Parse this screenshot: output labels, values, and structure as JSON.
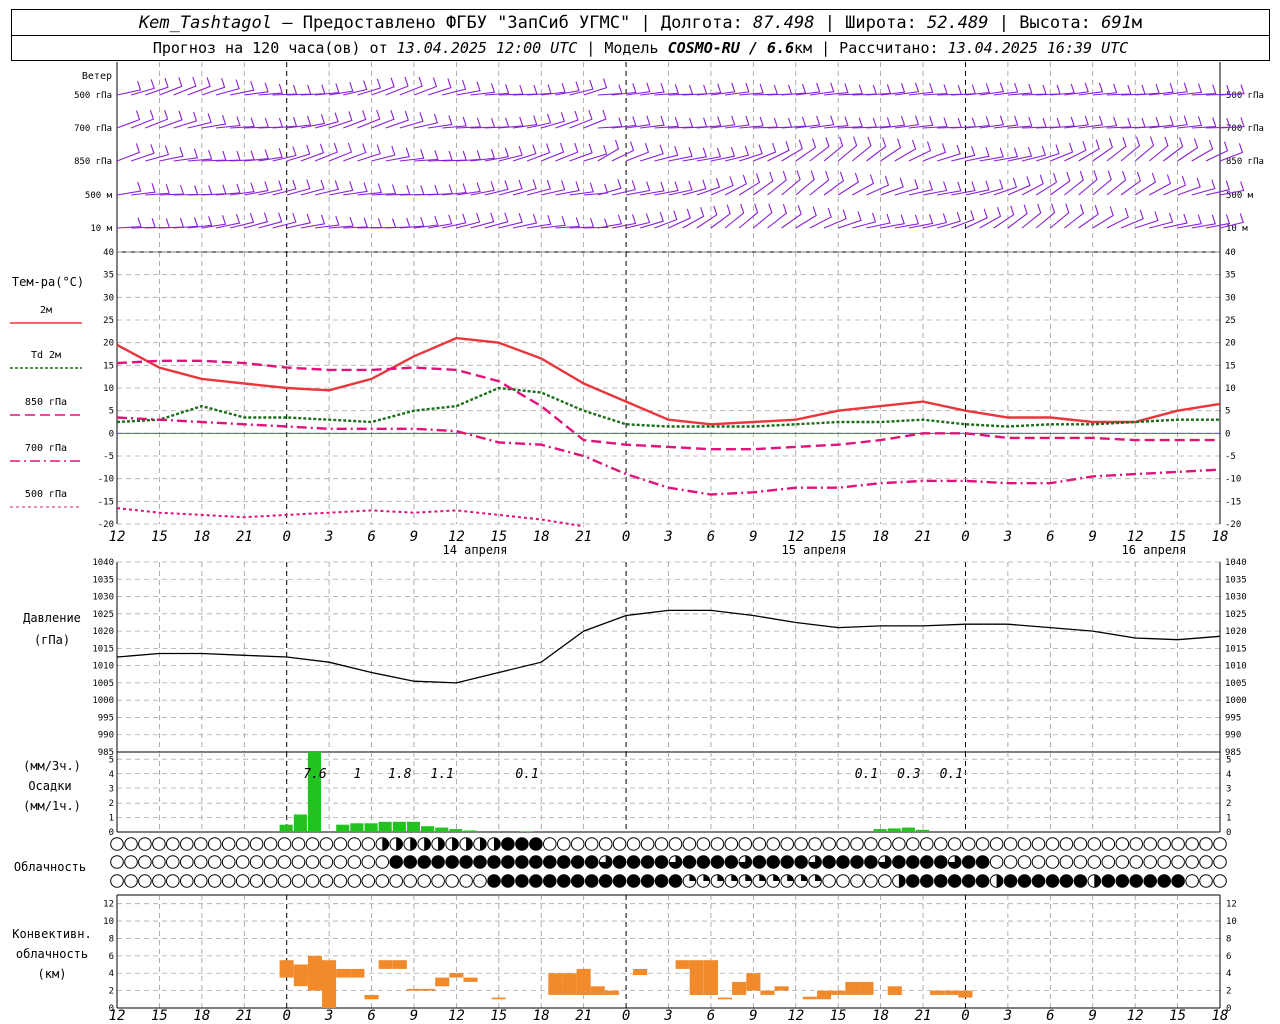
{
  "header": {
    "station": "Kem_Tashtagol",
    "provider": " — Предоставлено ФГБУ \"ЗапСиб УГМС\" | Долгота: ",
    "lon": "87.498",
    "lat_label": " | Широта: ",
    "lat": "52.489",
    "alt_label": " | Высота: ",
    "alt": "691",
    "alt_unit": "м",
    "fc_label": "Прогноз на 120 часа(ов) от ",
    "fc_from": "13.04.2025 12:00 UTC",
    "model_label": "  | Модель ",
    "model": "COSMO-RU / 6.6",
    "model_unit": "км",
    "calc_label": " | Рассчитано: ",
    "calc": "13.04.2025 16:39 UTC"
  },
  "colors": {
    "t2m": "#e8373c",
    "td": "#1a6e1a",
    "t850": "#e0137a",
    "wind": "#8a1fd6",
    "precip": "#22c31e",
    "conv": "#f08a2a",
    "pressure": "#000000"
  },
  "x_ticks": [
    "12",
    "15",
    "18",
    "21",
    "0",
    "3",
    "6",
    "9",
    "12",
    "15",
    "18",
    "21",
    "0",
    "3",
    "6",
    "9",
    "12",
    "15",
    "18",
    "21",
    "0",
    "3",
    "6",
    "9",
    "12",
    "15",
    "18"
  ],
  "date_labels": [
    "14 апреля",
    "15 апреля",
    "16 апреля"
  ],
  "wind_panel": {
    "title": "Ветер",
    "levels": [
      "500 гПа",
      "700 гПа",
      "850 гПа",
      "500 м",
      "10  м"
    ]
  },
  "temp_panel": {
    "title": "Тем-ра(°C)",
    "legend": [
      "2м",
      "Td  2м",
      "850 гПа",
      "700 гПа",
      "500 гПа"
    ],
    "yticks": [
      "40",
      "35",
      "30",
      "25",
      "20",
      "15",
      "10",
      "5",
      "0",
      "-5",
      "-10",
      "-15",
      "-20"
    ]
  },
  "pressure_panel": {
    "title": "Давление",
    "unit": "(гПа)",
    "yticks": [
      "1040",
      "1035",
      "1030",
      "1025",
      "1020",
      "1015",
      "1010",
      "1005",
      "1000",
      "995",
      "990",
      "985"
    ]
  },
  "precip_panel": {
    "unit_top": "(мм/3ч.)",
    "title": "Осадки",
    "unit_bottom": "(мм/1ч.)",
    "yticks": [
      "5",
      "4",
      "3",
      "2",
      "1",
      "0"
    ],
    "totals": [
      {
        "h": 14,
        "v": "7.6"
      },
      {
        "h": 17,
        "v": "1"
      },
      {
        "h": 20,
        "v": "1.8"
      },
      {
        "h": 23,
        "v": "1.1"
      },
      {
        "h": 29,
        "v": "0.1"
      },
      {
        "h": 53,
        "v": "0.1"
      },
      {
        "h": 56,
        "v": "0.3"
      },
      {
        "h": 59,
        "v": "0.1"
      }
    ]
  },
  "cloud_panel": {
    "title": "Облачность"
  },
  "conv_panel": {
    "title": [
      "Конвективн.",
      "облачность",
      "(км)"
    ],
    "yticks": [
      "12",
      "10",
      "8",
      "6",
      "4",
      "2",
      "0"
    ]
  },
  "chart_data": [
    {
      "type": "line",
      "title": "Тем-ра(°C)",
      "x_hours": [
        0,
        3,
        6,
        9,
        12,
        15,
        18,
        21,
        24,
        27,
        30,
        33,
        36,
        39,
        42,
        45,
        48,
        51,
        54,
        57,
        60,
        63,
        66,
        69,
        72,
        75,
        78
      ],
      "ylim": [
        -20,
        40
      ],
      "series": [
        {
          "name": "2м",
          "values": [
            19.5,
            14.5,
            12,
            11,
            10,
            9.5,
            12,
            17,
            21,
            20,
            16.5,
            11,
            7,
            3,
            2,
            2.5,
            3,
            5,
            6,
            7,
            5,
            3.5,
            3.5,
            2.5,
            2.5,
            5,
            6.5
          ]
        },
        {
          "name": "Td  2м",
          "values": [
            2.5,
            3,
            6,
            3.5,
            3.5,
            3,
            2.5,
            5,
            6,
            10,
            9,
            5,
            2,
            1.5,
            1.5,
            1.5,
            2,
            2.5,
            2.5,
            3,
            2,
            1.5,
            2,
            2,
            2.5,
            3,
            3
          ]
        },
        {
          "name": "850 гПа",
          "values": [
            15.5,
            16,
            16,
            15.5,
            14.5,
            14,
            14,
            14.5,
            14,
            11.5,
            6,
            -1.5,
            -2.5,
            -3,
            -3.5,
            -3.5,
            -3,
            -2.5,
            -1.5,
            0,
            0,
            -1,
            -1,
            -1,
            -1.5,
            -1.5,
            -1.5
          ]
        },
        {
          "name": "700 гПа",
          "values": [
            3.5,
            3,
            2.5,
            2,
            1.5,
            1,
            1,
            1,
            0.5,
            -2,
            -2.5,
            -5,
            -9,
            -12,
            -13.5,
            -13,
            -12,
            -12,
            -11,
            -10.5,
            -10.5,
            -11,
            -11,
            -9.5,
            -9,
            -8.5,
            -8
          ]
        },
        {
          "name": "500 гПа",
          "values": [
            -16.5,
            -17.5,
            -18,
            -18.5,
            -18,
            -17.5,
            -17,
            -17.5,
            -17,
            -18,
            -19,
            -20.5
          ]
        }
      ]
    },
    {
      "type": "line",
      "title": "Давление",
      "x_hours": [
        0,
        3,
        6,
        9,
        12,
        15,
        18,
        21,
        24,
        27,
        30,
        33,
        36,
        39,
        42,
        45,
        48,
        51,
        54,
        57,
        60,
        63,
        66,
        69,
        72,
        75,
        78
      ],
      "ylim": [
        985,
        1040
      ],
      "series": [
        {
          "name": "Давление",
          "values": [
            1012.5,
            1013.5,
            1013.5,
            1013,
            1012.5,
            1011,
            1008,
            1005.5,
            1005,
            1008,
            1011,
            1020,
            1024.5,
            1026,
            1026,
            1024.5,
            1022.5,
            1021,
            1021.5,
            1021.5,
            1022,
            1022,
            1021,
            1020,
            1018,
            1017.5,
            1018.5
          ]
        }
      ]
    },
    {
      "type": "bar",
      "title": "Осадки",
      "x_hours": [
        12,
        13,
        14,
        15,
        16,
        17,
        18,
        19,
        20,
        21,
        22,
        23,
        24,
        25,
        26,
        27,
        28,
        29,
        30,
        31,
        32,
        33,
        34,
        35,
        36,
        37,
        38,
        39,
        40,
        41,
        42,
        43,
        44,
        45,
        46,
        47,
        48,
        49,
        50,
        51,
        52,
        53,
        54,
        55,
        56,
        57,
        58,
        59,
        60,
        61,
        62,
        63,
        64,
        65,
        66,
        67,
        68,
        69,
        70,
        71,
        72,
        73,
        74,
        75,
        76,
        77,
        78
      ],
      "ylim": [
        0,
        5.5
      ],
      "values": [
        0.5,
        1.2,
        5.5,
        0,
        0.5,
        0.6,
        0.6,
        0.7,
        0.7,
        0.7,
        0.4,
        0.3,
        0.2,
        0.1,
        0,
        0,
        0,
        0.05,
        0,
        0,
        0,
        0,
        0,
        0,
        0,
        0,
        0,
        0,
        0,
        0,
        0,
        0,
        0,
        0,
        0,
        0,
        0,
        0,
        0,
        0,
        0,
        0,
        0.2,
        0.25,
        0.3,
        0.15,
        0,
        0,
        0,
        0,
        0,
        0,
        0,
        0,
        0,
        0,
        0,
        0,
        0,
        0,
        0,
        0,
        0,
        0,
        0,
        0,
        0
      ]
    },
    {
      "type": "bar",
      "title": "Конвективн. облачность (км)",
      "x_hours": [
        12,
        13,
        14,
        15,
        16,
        17,
        18,
        19,
        20,
        21,
        22,
        23,
        24,
        25,
        26,
        27,
        28,
        29,
        30,
        31,
        32,
        33,
        34,
        35,
        36,
        37,
        38,
        39,
        40,
        41,
        42,
        43,
        44,
        45,
        46,
        47,
        48,
        49,
        50,
        51,
        52,
        53,
        54,
        55,
        56,
        57,
        58,
        59,
        60,
        61,
        62,
        63,
        64,
        65,
        66,
        67,
        68,
        69,
        70,
        71,
        72,
        73,
        74,
        75,
        76,
        77,
        78
      ],
      "ylim": [
        0,
        13
      ],
      "values": [
        [
          3.5,
          5.5
        ],
        [
          2.5,
          5
        ],
        [
          2,
          6
        ],
        [
          0,
          5.5
        ],
        [
          3.5,
          4.5
        ],
        [
          3.5,
          4.5
        ],
        [
          1,
          1.5
        ],
        [
          4.5,
          5.5
        ],
        [
          4.5,
          5.5
        ],
        [
          2,
          2.2
        ],
        [
          2,
          2.2
        ],
        [
          2.5,
          3.5
        ],
        [
          3.5,
          4
        ],
        [
          3,
          3.5
        ],
        [
          null,
          null
        ],
        [
          1,
          1.2
        ],
        [
          null,
          null
        ],
        [
          null,
          null
        ],
        [
          null,
          null
        ],
        [
          1.5,
          4
        ],
        [
          1.5,
          4
        ],
        [
          1.5,
          4.5
        ],
        [
          1.5,
          2.5
        ],
        [
          1.5,
          2
        ],
        [
          null,
          null
        ],
        [
          3.8,
          4.5
        ],
        [
          null,
          null
        ],
        [
          null,
          null
        ],
        [
          4.5,
          5.5
        ],
        [
          1.5,
          5.5
        ],
        [
          1.5,
          5.5
        ],
        [
          1,
          1.2
        ],
        [
          1.5,
          3
        ],
        [
          2,
          4
        ],
        [
          1.5,
          2
        ],
        [
          2,
          2.5
        ],
        [
          null,
          null
        ],
        [
          1,
          1.3
        ],
        [
          1,
          2
        ],
        [
          1.5,
          2
        ],
        [
          1.5,
          3
        ],
        [
          1.5,
          3
        ],
        [
          null,
          null
        ],
        [
          1.5,
          2.5
        ],
        [
          null,
          null
        ],
        [
          null,
          null
        ],
        [
          1.5,
          2
        ],
        [
          1.5,
          2
        ],
        [
          1.2,
          2
        ],
        [
          null,
          null
        ],
        [
          null,
          null
        ],
        [
          null,
          null
        ],
        [
          null,
          null
        ],
        [
          null,
          null
        ],
        [
          null,
          null
        ],
        [
          null,
          null
        ],
        [
          null,
          null
        ],
        [
          null,
          null
        ],
        [
          null,
          null
        ],
        [
          null,
          null
        ],
        [
          null,
          null
        ],
        [
          null,
          null
        ],
        [
          null,
          null
        ],
        [
          null,
          null
        ],
        [
          null,
          null
        ],
        [
          null,
          null
        ],
        [
          null,
          null
        ]
      ]
    }
  ]
}
